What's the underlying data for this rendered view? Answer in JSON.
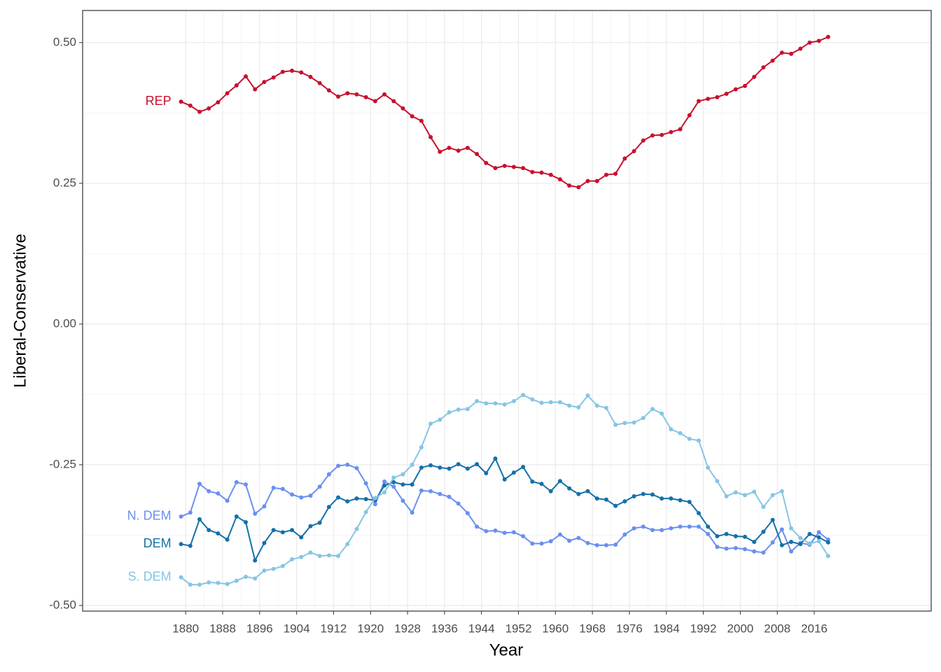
{
  "chart_data": {
    "type": "line",
    "x_label": "Year",
    "y_label": "Liberal-Conservative",
    "x": [
      1879,
      1881,
      1883,
      1885,
      1887,
      1889,
      1891,
      1893,
      1895,
      1897,
      1899,
      1901,
      1903,
      1905,
      1907,
      1909,
      1911,
      1913,
      1915,
      1917,
      1919,
      1921,
      1923,
      1925,
      1927,
      1929,
      1931,
      1933,
      1935,
      1937,
      1939,
      1941,
      1943,
      1945,
      1947,
      1949,
      1951,
      1953,
      1955,
      1957,
      1959,
      1961,
      1963,
      1965,
      1967,
      1969,
      1971,
      1973,
      1975,
      1977,
      1979,
      1981,
      1983,
      1985,
      1987,
      1989,
      1991,
      1993,
      1995,
      1997,
      1999,
      2001,
      2003,
      2005,
      2007,
      2009,
      2011,
      2013,
      2015,
      2017,
      2019
    ],
    "series": [
      {
        "name": "REP",
        "color": "#c8102e",
        "values": [
          0.395,
          0.388,
          0.377,
          0.383,
          0.394,
          0.41,
          0.424,
          0.44,
          0.417,
          0.43,
          0.438,
          0.448,
          0.45,
          0.447,
          0.439,
          0.428,
          0.415,
          0.404,
          0.41,
          0.408,
          0.403,
          0.396,
          0.408,
          0.396,
          0.383,
          0.369,
          0.361,
          0.332,
          0.306,
          0.313,
          0.308,
          0.313,
          0.302,
          0.286,
          0.277,
          0.281,
          0.279,
          0.277,
          0.27,
          0.269,
          0.265,
          0.257,
          0.246,
          0.243,
          0.254,
          0.254,
          0.265,
          0.267,
          0.294,
          0.307,
          0.326,
          0.335,
          0.336,
          0.341,
          0.346,
          0.371,
          0.396,
          0.4,
          0.403,
          0.409,
          0.417,
          0.423,
          0.439,
          0.456,
          0.468,
          0.482,
          0.48,
          0.489,
          0.5,
          0.503,
          0.51
        ]
      },
      {
        "name": "N. DEM",
        "color": "#6a8ff0",
        "values": [
          -0.342,
          -0.335,
          -0.284,
          -0.297,
          -0.301,
          -0.314,
          -0.281,
          -0.285,
          -0.337,
          -0.324,
          -0.291,
          -0.293,
          -0.303,
          -0.308,
          -0.305,
          -0.289,
          -0.267,
          -0.252,
          -0.25,
          -0.256,
          -0.283,
          -0.32,
          -0.28,
          -0.289,
          -0.314,
          -0.335,
          -0.296,
          -0.297,
          -0.302,
          -0.307,
          -0.319,
          -0.336,
          -0.36,
          -0.368,
          -0.367,
          -0.371,
          -0.37,
          -0.377,
          -0.39,
          -0.39,
          -0.386,
          -0.374,
          -0.385,
          -0.38,
          -0.389,
          -0.393,
          -0.393,
          -0.392,
          -0.374,
          -0.363,
          -0.36,
          -0.366,
          -0.366,
          -0.363,
          -0.36,
          -0.36,
          -0.36,
          -0.373,
          -0.396,
          -0.399,
          -0.398,
          -0.4,
          -0.404,
          -0.406,
          -0.388,
          -0.365,
          -0.404,
          -0.389,
          -0.392,
          -0.37,
          -0.383
        ]
      },
      {
        "name": "DEM",
        "color": "#1470a8",
        "values": [
          -0.391,
          -0.394,
          -0.347,
          -0.366,
          -0.372,
          -0.383,
          -0.342,
          -0.352,
          -0.42,
          -0.389,
          -0.366,
          -0.37,
          -0.366,
          -0.379,
          -0.359,
          -0.353,
          -0.325,
          -0.308,
          -0.315,
          -0.31,
          -0.311,
          -0.313,
          -0.287,
          -0.281,
          -0.285,
          -0.285,
          -0.255,
          -0.251,
          -0.255,
          -0.257,
          -0.249,
          -0.257,
          -0.249,
          -0.265,
          -0.239,
          -0.276,
          -0.264,
          -0.254,
          -0.28,
          -0.284,
          -0.297,
          -0.279,
          -0.292,
          -0.302,
          -0.297,
          -0.31,
          -0.312,
          -0.323,
          -0.315,
          -0.306,
          -0.302,
          -0.303,
          -0.31,
          -0.31,
          -0.313,
          -0.316,
          -0.336,
          -0.36,
          -0.377,
          -0.373,
          -0.377,
          -0.378,
          -0.387,
          -0.369,
          -0.348,
          -0.393,
          -0.387,
          -0.391,
          -0.373,
          -0.379,
          -0.388
        ]
      },
      {
        "name": "S. DEM",
        "color": "#86c5e3",
        "values": [
          -0.45,
          -0.463,
          -0.463,
          -0.459,
          -0.46,
          -0.462,
          -0.456,
          -0.449,
          -0.452,
          -0.438,
          -0.435,
          -0.43,
          -0.418,
          -0.414,
          -0.406,
          -0.412,
          -0.411,
          -0.412,
          -0.391,
          -0.364,
          -0.334,
          -0.309,
          -0.299,
          -0.273,
          -0.267,
          -0.25,
          -0.219,
          -0.177,
          -0.17,
          -0.157,
          -0.152,
          -0.151,
          -0.137,
          -0.141,
          -0.141,
          -0.143,
          -0.137,
          -0.126,
          -0.134,
          -0.14,
          -0.139,
          -0.139,
          -0.145,
          -0.148,
          -0.127,
          -0.145,
          -0.149,
          -0.179,
          -0.176,
          -0.175,
          -0.167,
          -0.151,
          -0.159,
          -0.187,
          -0.194,
          -0.204,
          -0.207,
          -0.255,
          -0.279,
          -0.306,
          -0.299,
          -0.304,
          -0.298,
          -0.325,
          -0.304,
          -0.297,
          -0.363,
          -0.38,
          -0.39,
          -0.386,
          -0.412
        ]
      }
    ],
    "xlim": [
      1857.7,
      2041.3
    ],
    "ylim": [
      -0.51,
      0.557
    ],
    "xticks": [
      1880,
      1888,
      1896,
      1904,
      1912,
      1920,
      1928,
      1936,
      1944,
      1952,
      1960,
      1968,
      1976,
      1984,
      1992,
      2000,
      2008,
      2016
    ],
    "yticks": [
      {
        "value": -0.5,
        "label": "-0.50"
      },
      -0.25,
      {
        "value": 0,
        "label": "0.00"
      },
      0.25,
      {
        "value": 0.5,
        "label": "0.50"
      }
    ],
    "grid": true
  }
}
